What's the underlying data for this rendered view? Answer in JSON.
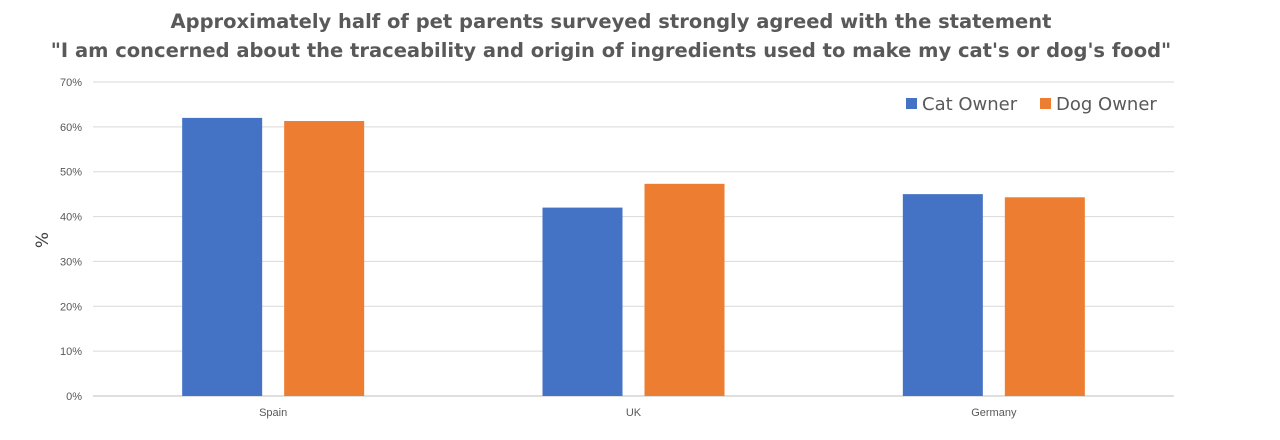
{
  "chart_data": {
    "type": "bar",
    "title_lines": [
      "Approximately half of pet parents surveyed strongly agreed with the statement",
      "\"I am concerned about the traceability and origin of ingredients used to make my cat's or dog's food\""
    ],
    "xlabel": "",
    "ylabel": "%",
    "ylim": [
      0,
      70
    ],
    "yticks": [
      "0%",
      "10%",
      "20%",
      "30%",
      "40%",
      "50%",
      "60%",
      "70%"
    ],
    "categories": [
      "Spain",
      "UK",
      "Germany"
    ],
    "series": [
      {
        "name": "Cat Owner",
        "color": "#4472C4",
        "values": [
          62,
          42,
          45
        ]
      },
      {
        "name": "Dog Owner",
        "color": "#ED7D31",
        "values": [
          61.3,
          47.3,
          44.3
        ]
      }
    ],
    "legend_position": "top-right",
    "grid": true
  }
}
